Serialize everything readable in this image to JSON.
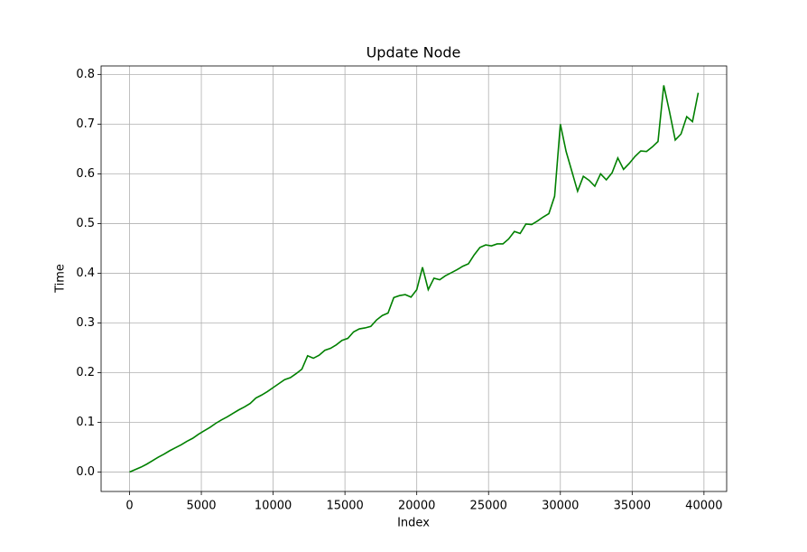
{
  "chart_data": {
    "type": "line",
    "title": "Update Node",
    "xlabel": "Index",
    "ylabel": "Time",
    "x": [
      0,
      400,
      800,
      1200,
      1600,
      2000,
      2400,
      2800,
      3200,
      3600,
      4000,
      4400,
      4800,
      5200,
      5600,
      6000,
      6400,
      6800,
      7200,
      7600,
      8000,
      8400,
      8800,
      9200,
      9600,
      10000,
      10400,
      10800,
      11200,
      11600,
      12000,
      12400,
      12800,
      13200,
      13600,
      14000,
      14400,
      14800,
      15200,
      15600,
      16000,
      16400,
      16800,
      17200,
      17600,
      18000,
      18400,
      18800,
      19200,
      19600,
      20000,
      20400,
      20800,
      21200,
      21600,
      22000,
      22400,
      22800,
      23200,
      23600,
      24000,
      24400,
      24800,
      25200,
      25600,
      26000,
      26400,
      26800,
      27200,
      27600,
      28000,
      28400,
      28800,
      29200,
      29600,
      30000,
      30400,
      30800,
      31200,
      31600,
      32000,
      32400,
      32800,
      33200,
      33600,
      34000,
      34400,
      34800,
      35200,
      35600,
      36000,
      36400,
      36800,
      37200,
      37600,
      38000,
      38400,
      38800,
      39200,
      39600
    ],
    "series": [
      {
        "name": "Update Node",
        "color": "#008000",
        "values": [
          0,
          0.005,
          0.01,
          0.016,
          0.023,
          0.03,
          0.036,
          0.043,
          0.049,
          0.055,
          0.062,
          0.068,
          0.076,
          0.083,
          0.09,
          0.098,
          0.105,
          0.111,
          0.118,
          0.125,
          0.131,
          0.138,
          0.149,
          0.155,
          0.162,
          0.17,
          0.178,
          0.186,
          0.19,
          0.198,
          0.207,
          0.234,
          0.229,
          0.235,
          0.245,
          0.249,
          0.256,
          0.265,
          0.269,
          0.282,
          0.288,
          0.29,
          0.293,
          0.306,
          0.315,
          0.32,
          0.351,
          0.355,
          0.357,
          0.352,
          0.367,
          0.412,
          0.367,
          0.39,
          0.387,
          0.395,
          0.401,
          0.407,
          0.414,
          0.419,
          0.437,
          0.452,
          0.457,
          0.455,
          0.459,
          0.459,
          0.469,
          0.484,
          0.48,
          0.499,
          0.498,
          0.505,
          0.513,
          0.52,
          0.555,
          0.7,
          0.645,
          0.605,
          0.565,
          0.595,
          0.587,
          0.575,
          0.6,
          0.588,
          0.602,
          0.632,
          0.609,
          0.621,
          0.635,
          0.646,
          0.645,
          0.654,
          0.665,
          0.778,
          0.725,
          0.668,
          0.68,
          0.715,
          0.705,
          0.763
        ]
      }
    ],
    "xlim": [
      -1980,
      41580
    ],
    "ylim": [
      -0.039,
      0.817
    ],
    "xticks": [
      0,
      5000,
      10000,
      15000,
      20000,
      25000,
      30000,
      35000,
      40000
    ],
    "yticks": [
      {
        "value": 0,
        "label": "0.0"
      },
      0.1,
      0.2,
      0.3,
      0.4,
      0.5,
      0.6,
      0.7,
      0.8
    ],
    "grid": true
  }
}
